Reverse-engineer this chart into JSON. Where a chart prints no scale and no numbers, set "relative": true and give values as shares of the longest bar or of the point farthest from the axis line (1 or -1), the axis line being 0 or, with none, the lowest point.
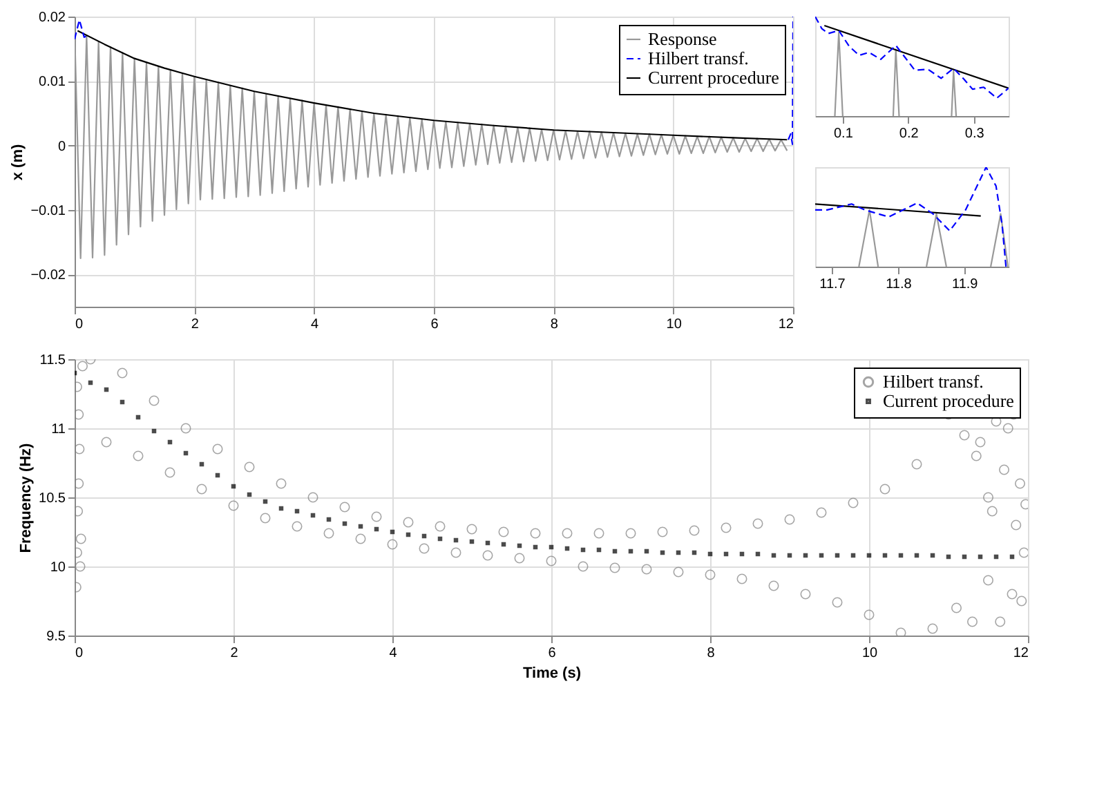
{
  "chart_data": [
    {
      "type": "line",
      "ylabel": "x (m)",
      "xlim": [
        0,
        12
      ],
      "xticks": [
        0,
        2,
        4,
        6,
        8,
        10,
        12
      ],
      "ylim": [
        -0.025,
        0.02
      ],
      "yticks": [
        -0.02,
        -0.01,
        0,
        0.01,
        0.02
      ],
      "grid": true,
      "legend": "top right",
      "series": [
        {
          "name": "Response",
          "color": "#999999",
          "line_style": "solid",
          "x": [
            0.0,
            0.1,
            0.2,
            0.3,
            0.4,
            0.5,
            0.6,
            0.7,
            0.8,
            0.9,
            1.0,
            1.1,
            1.2,
            1.3,
            1.4,
            1.5,
            1.6,
            1.7,
            1.8,
            1.9,
            2.0,
            2.1,
            2.2,
            2.3,
            2.4,
            2.5,
            2.6,
            2.7,
            2.8,
            2.9,
            3.0,
            3.1,
            3.2,
            3.3,
            3.4,
            3.5,
            3.6,
            3.7,
            3.8,
            3.9,
            4.0,
            4.1,
            4.2,
            4.3,
            4.4,
            4.5,
            4.6,
            4.7,
            4.8,
            4.9,
            5.0,
            5.1,
            5.2,
            5.3,
            5.4,
            5.5,
            5.6,
            5.7,
            5.8,
            5.9,
            6.0,
            6.1,
            6.2,
            6.3,
            6.4,
            6.5,
            6.6,
            6.7,
            6.8,
            6.9,
            7.0,
            7.1,
            7.2,
            7.3,
            7.4,
            7.5,
            7.6,
            7.7,
            7.8,
            7.9,
            8.0,
            8.1,
            8.2,
            8.3,
            8.4,
            8.5,
            8.6,
            8.7,
            8.8,
            8.9,
            9.0,
            9.1,
            9.2,
            9.3,
            9.4,
            9.5,
            9.6,
            9.7,
            9.8,
            9.9,
            10.0,
            10.1,
            10.2,
            10.3,
            10.4,
            10.5,
            10.6,
            10.7,
            10.8,
            10.9,
            11.0,
            11.1,
            11.2,
            11.3,
            11.4,
            11.5,
            11.6,
            11.7,
            11.8,
            11.9
          ],
          "values": [
            0.0178,
            -0.0175,
            0.017,
            -0.0174,
            0.0161,
            -0.017,
            0.0153,
            -0.0154,
            0.0144,
            -0.0138,
            0.0135,
            -0.0126,
            0.0129,
            -0.0117,
            0.0123,
            -0.0108,
            0.0117,
            -0.0099,
            0.0112,
            -0.009,
            0.0107,
            -0.0084,
            0.0102,
            -0.0083,
            0.0098,
            -0.0082,
            0.0093,
            -0.008,
            0.0089,
            -0.0079,
            0.0084,
            -0.0077,
            0.008,
            -0.0074,
            0.0077,
            -0.0071,
            0.0073,
            -0.0067,
            0.007,
            -0.0064,
            0.0066,
            -0.0061,
            0.0063,
            -0.0058,
            0.006,
            -0.0055,
            0.0056,
            -0.0052,
            0.0053,
            -0.0049,
            0.005,
            -0.0047,
            0.0048,
            -0.0044,
            0.0046,
            -0.0042,
            0.0043,
            -0.004,
            0.0041,
            -0.0037,
            0.0039,
            -0.0035,
            0.0037,
            -0.0034,
            0.0036,
            -0.0032,
            0.0034,
            -0.003,
            0.0033,
            -0.0029,
            0.0031,
            -0.0027,
            0.003,
            -0.0026,
            0.0028,
            -0.0025,
            0.0027,
            -0.0024,
            0.0025,
            -0.0023,
            0.0024,
            -0.0022,
            0.0023,
            -0.0021,
            0.0022,
            -0.002,
            0.0022,
            -0.0019,
            0.0021,
            -0.0018,
            0.002,
            -0.0017,
            0.0019,
            -0.0016,
            0.0018,
            -0.0015,
            0.0018,
            -0.0014,
            0.0017,
            -0.0013,
            0.0016,
            -0.0013,
            0.0015,
            -0.0012,
            0.0014,
            -0.0012,
            0.0014,
            -0.0011,
            0.0013,
            -0.001,
            0.0012,
            -0.001,
            0.0011,
            -0.0009,
            0.0011,
            -0.0009,
            0.001,
            -0.0008,
            0.0009,
            -0.0008
          ]
        },
        {
          "name": "Hilbert transf.",
          "color": "#0000ff",
          "line_style": "dashed",
          "x": [
            0,
            0.08,
            0.16,
            0.25,
            6,
            11.92,
            11.96,
            11.99,
            12
          ],
          "values": [
            0.0165,
            0.0195,
            0.0168,
            0.0172,
            null,
            0.0009,
            0.0018,
            0.0002,
            0.02
          ]
        },
        {
          "name": "Current procedure",
          "color": "#000000",
          "line_style": "solid",
          "x": [
            0.05,
            0.5,
            1,
            1.5,
            2,
            3,
            4,
            5,
            6,
            7,
            8,
            9,
            10,
            11,
            11.9
          ],
          "values": [
            0.0178,
            0.0157,
            0.0135,
            0.012,
            0.0107,
            0.0084,
            0.0066,
            0.005,
            0.0039,
            0.0031,
            0.0024,
            0.002,
            0.0016,
            0.0012,
            0.0009
          ]
        }
      ]
    },
    {
      "type": "line",
      "relative": true,
      "xlim": [
        0.058,
        0.353
      ],
      "xticks": [
        0.1,
        0.2,
        0.3
      ],
      "series": [
        {
          "color": "#999999",
          "line_style": "solid",
          "x": [
            0.088,
            0.094,
            0.1,
            0.14,
            0.177,
            0.181,
            0.186,
            0.22,
            0.266,
            0.269,
            0.273
          ],
          "values": [
            0,
            0.84,
            0,
            null,
            0,
            0.67,
            0,
            null,
            0,
            0.45,
            0
          ]
        },
        {
          "color": "#0000ff",
          "line_style": "dashed",
          "x": [
            0.058,
            0.068,
            0.078,
            0.094,
            0.11,
            0.125,
            0.14,
            0.158,
            0.181,
            0.195,
            0.21,
            0.23,
            0.25,
            0.269,
            0.285,
            0.298,
            0.315,
            0.335,
            0.353
          ],
          "values": [
            1.0,
            0.88,
            0.83,
            0.86,
            0.7,
            0.61,
            0.64,
            0.57,
            0.71,
            0.59,
            0.46,
            0.47,
            0.38,
            0.48,
            0.37,
            0.27,
            0.29,
            0.18,
            0.28
          ]
        },
        {
          "color": "#000000",
          "line_style": "solid",
          "x": [
            0.072,
            0.353
          ],
          "values": [
            0.91,
            0.28
          ]
        }
      ]
    },
    {
      "type": "line",
      "relative": true,
      "xlim": [
        11.675,
        11.967
      ],
      "xticks": [
        11.7,
        11.8,
        11.9
      ],
      "series": [
        {
          "color": "#999999",
          "line_style": "solid",
          "x": [
            11.741,
            11.757,
            11.77,
            11.8,
            11.843,
            11.858,
            11.873,
            11.9,
            11.94,
            11.955,
            11.966
          ],
          "values": [
            0,
            0.57,
            0,
            null,
            0,
            0.53,
            0,
            null,
            0,
            0.53,
            0
          ]
        },
        {
          "color": "#0000ff",
          "line_style": "dashed",
          "x": [
            11.675,
            11.693,
            11.73,
            11.75,
            11.786,
            11.829,
            11.853,
            11.878,
            11.902,
            11.933,
            11.948,
            11.957,
            11.963
          ],
          "values": [
            0.57,
            0.57,
            0.63,
            0.57,
            0.5,
            0.64,
            0.53,
            0.36,
            0.57,
            1.0,
            0.81,
            0.43,
            0
          ]
        },
        {
          "color": "#000000",
          "line_style": "solid",
          "x": [
            11.675,
            11.925
          ],
          "values": [
            0.63,
            0.51
          ]
        }
      ]
    },
    {
      "type": "scatter",
      "xlabel": "Time (s)",
      "ylabel": "Frequency (Hz)",
      "xlim": [
        0,
        12
      ],
      "xticks": [
        0,
        2,
        4,
        6,
        8,
        10,
        12
      ],
      "ylim": [
        9.5,
        11.5
      ],
      "yticks": [
        9.5,
        10,
        10.5,
        11,
        11.5
      ],
      "grid": true,
      "legend": "top right",
      "series": [
        {
          "name": "Hilbert transf.",
          "color": "#808080",
          "marker": "circle",
          "x": [
            0.02,
            0.03,
            0.04,
            0.05,
            0.06,
            0.05,
            0.03,
            0.08,
            0.07,
            0.1,
            0.2,
            0.4,
            0.6,
            0.8,
            1.0,
            1.2,
            1.4,
            1.6,
            1.8,
            2.0,
            2.2,
            2.4,
            2.6,
            2.8,
            3.0,
            3.2,
            3.4,
            3.6,
            3.8,
            4.0,
            4.2,
            4.4,
            4.6,
            4.8,
            5.0,
            5.2,
            5.4,
            5.6,
            5.8,
            6.0,
            6.2,
            6.4,
            6.6,
            6.8,
            7.0,
            7.2,
            7.4,
            7.6,
            7.8,
            8.0,
            8.2,
            8.4,
            8.6,
            8.8,
            9.0,
            9.2,
            9.4,
            9.6,
            9.8,
            10.0,
            10.2,
            10.4,
            10.6,
            10.8,
            11.0,
            11.1,
            11.2,
            11.3,
            11.35,
            11.4,
            11.5,
            11.55,
            11.6,
            11.65,
            11.7,
            11.75,
            11.8,
            11.85,
            11.9,
            11.95,
            11.97,
            11.92,
            11.82,
            11.5
          ],
          "values": [
            9.85,
            10.1,
            10.4,
            10.6,
            10.85,
            11.1,
            11.3,
            10.2,
            10.0,
            11.45,
            11.5,
            10.9,
            11.4,
            10.8,
            11.2,
            10.68,
            11.0,
            10.56,
            10.85,
            10.44,
            10.72,
            10.35,
            10.6,
            10.29,
            10.5,
            10.24,
            10.43,
            10.2,
            10.36,
            10.16,
            10.32,
            10.13,
            10.29,
            10.1,
            10.27,
            10.08,
            10.25,
            10.06,
            10.24,
            10.04,
            10.24,
            10.0,
            10.24,
            9.99,
            10.24,
            9.98,
            10.25,
            9.96,
            10.26,
            9.94,
            10.28,
            9.91,
            10.31,
            9.86,
            10.34,
            9.8,
            10.39,
            9.74,
            10.46,
            9.65,
            10.56,
            9.52,
            10.74,
            9.55,
            11.1,
            9.7,
            10.95,
            9.6,
            10.8,
            10.9,
            9.9,
            10.4,
            11.05,
            9.6,
            10.7,
            11.0,
            9.8,
            10.3,
            10.6,
            10.1,
            10.45,
            9.75,
            11.1,
            10.5
          ]
        },
        {
          "name": "Current procedure",
          "color": "#000000",
          "marker": "square",
          "x": [
            0.0,
            0.2,
            0.4,
            0.6,
            0.8,
            1.0,
            1.2,
            1.4,
            1.6,
            1.8,
            2.0,
            2.2,
            2.4,
            2.6,
            2.8,
            3.0,
            3.2,
            3.4,
            3.6,
            3.8,
            4.0,
            4.2,
            4.4,
            4.6,
            4.8,
            5.0,
            5.2,
            5.4,
            5.6,
            5.8,
            6.0,
            6.2,
            6.4,
            6.6,
            6.8,
            7.0,
            7.2,
            7.4,
            7.6,
            7.8,
            8.0,
            8.2,
            8.4,
            8.6,
            8.8,
            9.0,
            9.2,
            9.4,
            9.6,
            9.8,
            10.0,
            10.2,
            10.4,
            10.6,
            10.8,
            11.0,
            11.2,
            11.4,
            11.6,
            11.8
          ],
          "values": [
            11.4,
            11.33,
            11.28,
            11.19,
            11.08,
            10.98,
            10.9,
            10.82,
            10.74,
            10.66,
            10.58,
            10.52,
            10.47,
            10.42,
            10.4,
            10.37,
            10.34,
            10.31,
            10.29,
            10.27,
            10.25,
            10.23,
            10.22,
            10.2,
            10.19,
            10.18,
            10.17,
            10.16,
            10.15,
            10.14,
            10.14,
            10.13,
            10.12,
            10.12,
            10.11,
            10.11,
            10.11,
            10.1,
            10.1,
            10.1,
            10.09,
            10.09,
            10.09,
            10.09,
            10.08,
            10.08,
            10.08,
            10.08,
            10.08,
            10.08,
            10.08,
            10.08,
            10.08,
            10.08,
            10.08,
            10.07,
            10.07,
            10.07,
            10.07,
            10.07
          ]
        }
      ]
    }
  ]
}
